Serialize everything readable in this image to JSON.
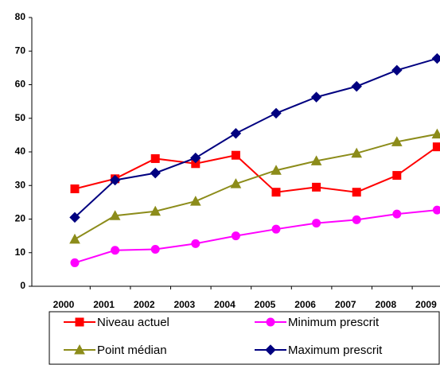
{
  "chart_data": {
    "type": "line",
    "categories": [
      "2000",
      "2001",
      "2002",
      "2003",
      "2004",
      "2005",
      "2006",
      "2007",
      "2008",
      "2009"
    ],
    "series": [
      {
        "name": "Niveau actuel",
        "color": "#ff0000",
        "marker": "square",
        "values": [
          29,
          32,
          38,
          36.5,
          39,
          28,
          29.5,
          28,
          33,
          41.5
        ]
      },
      {
        "name": "Minimum prescrit",
        "color": "#ff00ff",
        "marker": "circle",
        "values": [
          7,
          10.7,
          11,
          12.7,
          15,
          17,
          18.8,
          19.8,
          21.5,
          22.7
        ]
      },
      {
        "name": "Point médian",
        "color": "#8c8c1a",
        "marker": "triangle",
        "values": [
          14,
          21,
          22.3,
          25.3,
          30.5,
          34.5,
          37.3,
          39.6,
          43,
          45.3
        ]
      },
      {
        "name": "Maximum prescrit",
        "color": "#000080",
        "marker": "diamond",
        "values": [
          20.5,
          31.6,
          33.7,
          38.2,
          45.5,
          51.5,
          56.3,
          59.5,
          64.3,
          67.8
        ]
      }
    ],
    "ylim": [
      0,
      80
    ],
    "yticks": [
      0,
      10,
      20,
      30,
      40,
      50,
      60,
      70,
      80
    ],
    "grid": false,
    "legend": "bottom"
  }
}
